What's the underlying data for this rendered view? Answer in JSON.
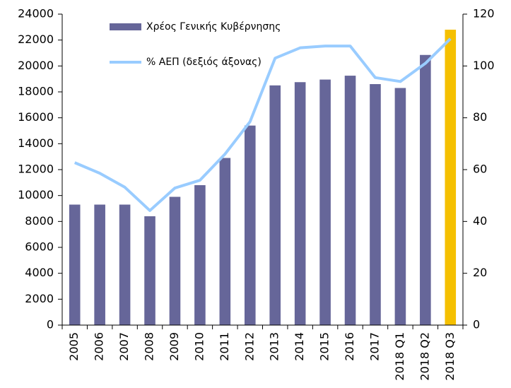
{
  "chart_data": {
    "type": "bar_line",
    "categories": [
      "2005",
      "2006",
      "2007",
      "2008",
      "2009",
      "2010",
      "2011",
      "2012",
      "2013",
      "2014",
      "2015",
      "2016",
      "2017",
      "2018 Q1",
      "2018 Q2",
      "2018 Q3"
    ],
    "series": [
      {
        "name": "Χρέος Γενικής Κυβέρνησης",
        "type": "bar",
        "color": "#666699",
        "colors": [
          "#666699",
          "#666699",
          "#666699",
          "#666699",
          "#666699",
          "#666699",
          "#666699",
          "#666699",
          "#666699",
          "#666699",
          "#666699",
          "#666699",
          "#666699",
          "#666699",
          "#666699",
          "#f5c000"
        ],
        "values": [
          9300,
          9300,
          9300,
          8400,
          9900,
          10800,
          12900,
          15400,
          18500,
          18750,
          18950,
          19250,
          18600,
          18300,
          20850,
          22800
        ]
      },
      {
        "name": "% ΑΕΠ (δεξιός άξονας)",
        "type": "line",
        "axis": "y2",
        "color": "#99ccff",
        "values": [
          62.7,
          58.6,
          53.2,
          44.2,
          52.9,
          55.9,
          66,
          78.5,
          103,
          107,
          107.7,
          107.7,
          95.5,
          94,
          101,
          110.5
        ]
      }
    ],
    "ylim": [
      0,
      24000
    ],
    "yticks": [
      0,
      2000,
      4000,
      6000,
      8000,
      10000,
      12000,
      14000,
      16000,
      18000,
      20000,
      22000,
      24000
    ],
    "y2lim": [
      0,
      120
    ],
    "y2ticks": [
      0,
      20,
      40,
      60,
      80,
      100,
      120
    ],
    "grid": false,
    "legend": "top-left"
  }
}
